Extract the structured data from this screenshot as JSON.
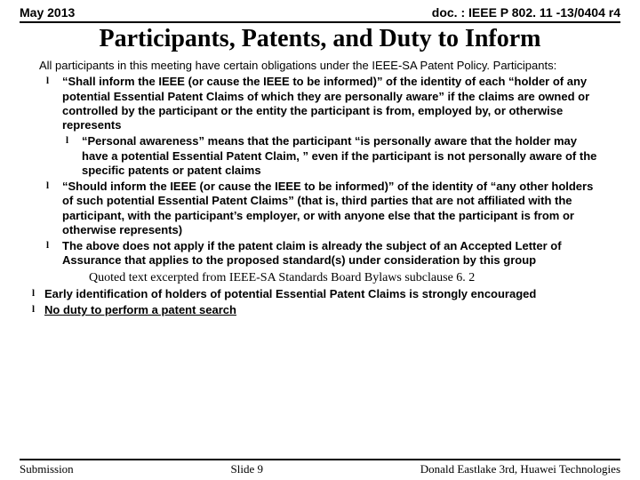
{
  "header": {
    "left": "May 2013",
    "right": "doc. : IEEE P 802. 11 -13/0404 r4"
  },
  "title": "Participants, Patents, and Duty to Inform",
  "intro": "All participants in this meeting have certain obligations under the IEEE-SA Patent Policy.  Participants:",
  "b1": "“Shall inform the IEEE (or cause the IEEE to be informed)” of the identity of each “holder of any potential Essential Patent Claims of which they are personally aware” if the claims are owned or controlled by the participant or the entity the participant is from, employed by, or otherwise represents",
  "b1a": "“Personal awareness” means that the participant “is personally aware that the holder may have a potential Essential Patent Claim, ” even if the participant is not personally aware of the specific patents or patent claims",
  "b2": "“Should inform the IEEE (or cause the IEEE to be informed)” of the identity of “any other holders of such potential Essential Patent Claims” (that is, third parties that are not affiliated with the participant, with the participant’s employer, or with anyone else that the participant is from or otherwise represents)",
  "b3": "The above does not apply if the patent claim is already the subject of an Accepted Letter of Assurance that applies to the proposed standard(s) under consideration by this group",
  "quoted": "Quoted text excerpted from IEEE-SA Standards Board Bylaws subclause 6. 2",
  "o1": "Early identification of holders of potential Essential Patent Claims is strongly encouraged",
  "o2": "No duty to perform a patent search",
  "footer": {
    "left": "Submission",
    "center": "Slide 9",
    "right": "Donald Eastlake 3rd, Huawei Technologies"
  }
}
